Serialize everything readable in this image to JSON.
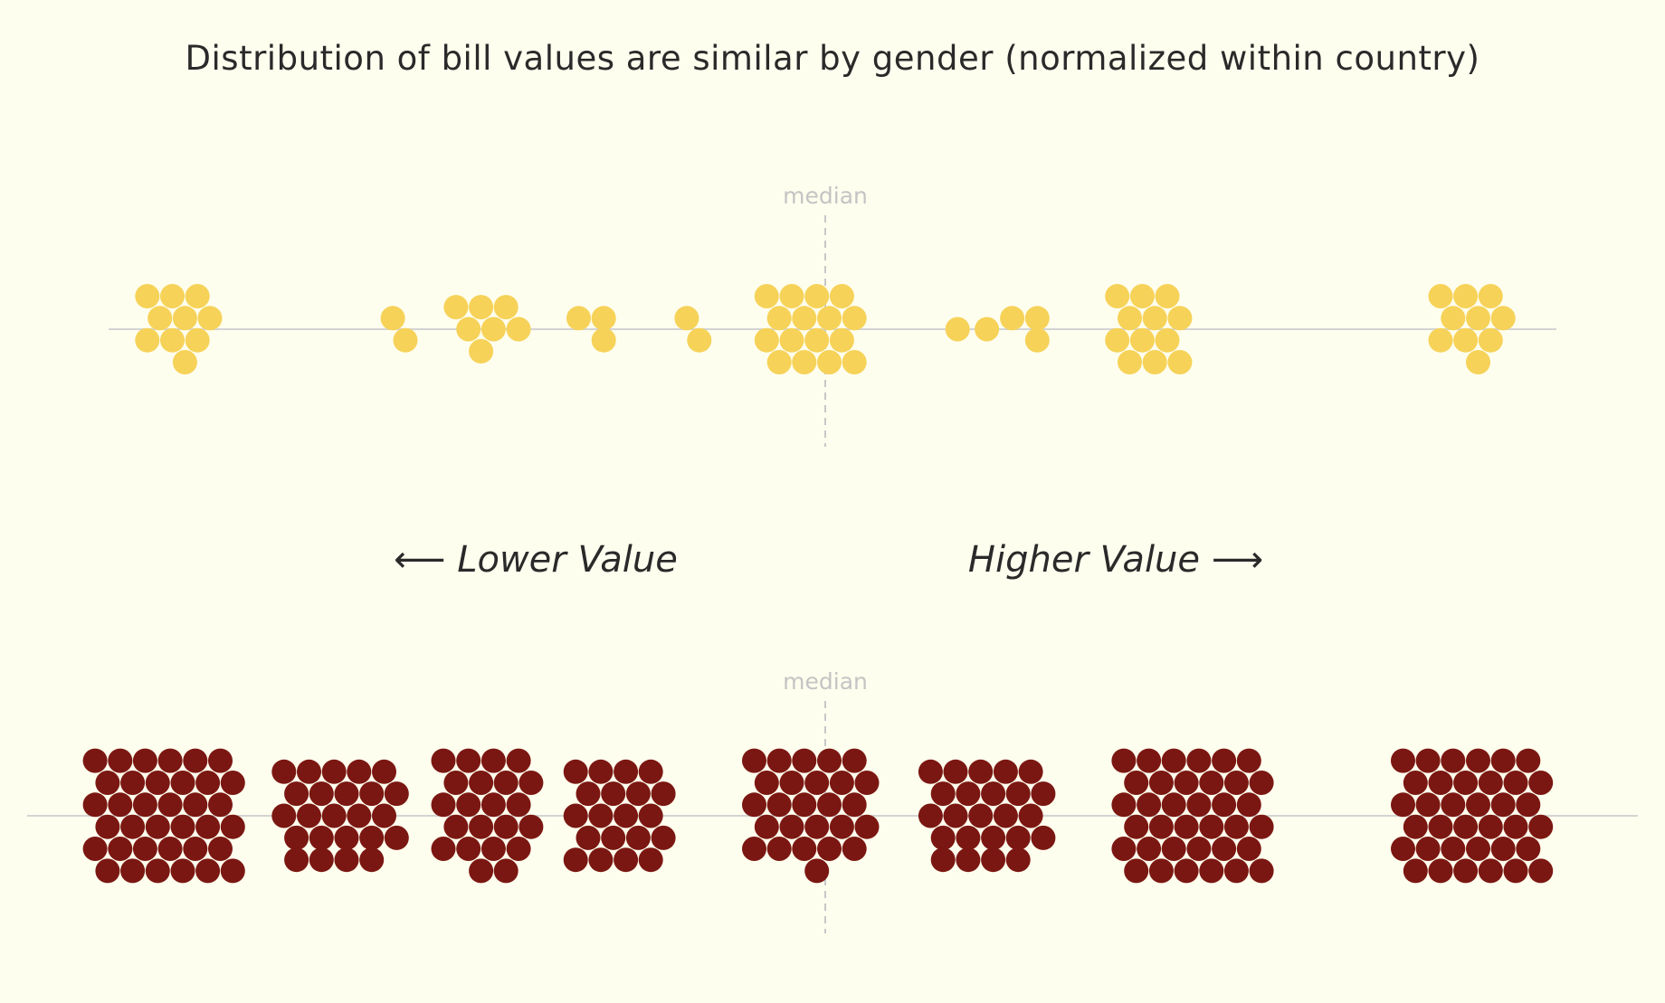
{
  "chart_data": {
    "type": "scatter",
    "subtype": "beeswarm",
    "title": "Distribution of bill values are similar by gender (normalized within country)",
    "left_annotation": "⟵ Lower Value",
    "right_annotation": "Higher Value ⟶",
    "median_label": "median",
    "median_x": 0,
    "xlim": [
      -0.5,
      0.5
    ],
    "grid": false,
    "legend": "none",
    "series": [
      {
        "color": "#f6d258",
        "values": [
          -0.44,
          -0.44,
          -0.44,
          -0.44,
          -0.44,
          -0.44,
          -0.44,
          -0.44,
          -0.44,
          -0.44,
          -0.29,
          -0.29,
          -0.23,
          -0.23,
          -0.23,
          -0.23,
          -0.23,
          -0.23,
          -0.23,
          -0.155,
          -0.155,
          -0.155,
          -0.09,
          -0.09,
          -0.01,
          -0.01,
          -0.01,
          -0.01,
          -0.01,
          -0.01,
          -0.01,
          -0.01,
          -0.01,
          -0.01,
          -0.01,
          -0.01,
          -0.01,
          -0.01,
          -0.01,
          -0.01,
          0.09,
          0.11,
          0.14,
          0.14,
          0.14,
          0.22,
          0.22,
          0.22,
          0.22,
          0.22,
          0.22,
          0.22,
          0.22,
          0.22,
          0.22,
          0.22,
          0.22,
          0.44,
          0.44,
          0.44,
          0.44,
          0.44,
          0.44,
          0.44,
          0.44,
          0.44,
          0.44
        ]
      },
      {
        "color": "#7b1712",
        "values": [
          -0.45,
          -0.45,
          -0.45,
          -0.45,
          -0.45,
          -0.45,
          -0.45,
          -0.45,
          -0.45,
          -0.45,
          -0.45,
          -0.45,
          -0.45,
          -0.45,
          -0.45,
          -0.45,
          -0.45,
          -0.45,
          -0.45,
          -0.45,
          -0.45,
          -0.45,
          -0.45,
          -0.45,
          -0.45,
          -0.45,
          -0.45,
          -0.45,
          -0.45,
          -0.45,
          -0.45,
          -0.45,
          -0.45,
          -0.45,
          -0.45,
          -0.45,
          -0.33,
          -0.33,
          -0.33,
          -0.33,
          -0.33,
          -0.33,
          -0.33,
          -0.33,
          -0.33,
          -0.33,
          -0.33,
          -0.33,
          -0.33,
          -0.33,
          -0.33,
          -0.33,
          -0.33,
          -0.33,
          -0.33,
          -0.33,
          -0.33,
          -0.33,
          -0.33,
          -0.33,
          -0.23,
          -0.23,
          -0.23,
          -0.23,
          -0.23,
          -0.23,
          -0.23,
          -0.23,
          -0.23,
          -0.23,
          -0.23,
          -0.23,
          -0.23,
          -0.23,
          -0.23,
          -0.23,
          -0.23,
          -0.23,
          -0.23,
          -0.23,
          -0.23,
          -0.23,
          -0.14,
          -0.14,
          -0.14,
          -0.14,
          -0.14,
          -0.14,
          -0.14,
          -0.14,
          -0.14,
          -0.14,
          -0.14,
          -0.14,
          -0.14,
          -0.14,
          -0.14,
          -0.14,
          -0.14,
          -0.14,
          -0.14,
          -0.14,
          -0.01,
          -0.01,
          -0.01,
          -0.01,
          -0.01,
          -0.01,
          -0.01,
          -0.01,
          -0.01,
          -0.01,
          -0.01,
          -0.01,
          -0.01,
          -0.01,
          -0.01,
          -0.01,
          -0.01,
          -0.01,
          -0.01,
          -0.01,
          -0.01,
          -0.01,
          -0.01,
          -0.01,
          -0.01,
          -0.01,
          0.11,
          0.11,
          0.11,
          0.11,
          0.11,
          0.11,
          0.11,
          0.11,
          0.11,
          0.11,
          0.11,
          0.11,
          0.11,
          0.11,
          0.11,
          0.11,
          0.11,
          0.11,
          0.11,
          0.11,
          0.11,
          0.11,
          0.11,
          0.11,
          0.25,
          0.25,
          0.25,
          0.25,
          0.25,
          0.25,
          0.25,
          0.25,
          0.25,
          0.25,
          0.25,
          0.25,
          0.25,
          0.25,
          0.25,
          0.25,
          0.25,
          0.25,
          0.25,
          0.25,
          0.25,
          0.25,
          0.25,
          0.25,
          0.25,
          0.25,
          0.25,
          0.25,
          0.25,
          0.25,
          0.25,
          0.25,
          0.25,
          0.25,
          0.25,
          0.25,
          0.44,
          0.44,
          0.44,
          0.44,
          0.44,
          0.44,
          0.44,
          0.44,
          0.44,
          0.44,
          0.44,
          0.44,
          0.44,
          0.44,
          0.44,
          0.44,
          0.44,
          0.44,
          0.44,
          0.44,
          0.44,
          0.44,
          0.44,
          0.44,
          0.44,
          0.44,
          0.44,
          0.44,
          0.44,
          0.44,
          0.44,
          0.44,
          0.44,
          0.44,
          0.44,
          0.44
        ]
      }
    ]
  }
}
